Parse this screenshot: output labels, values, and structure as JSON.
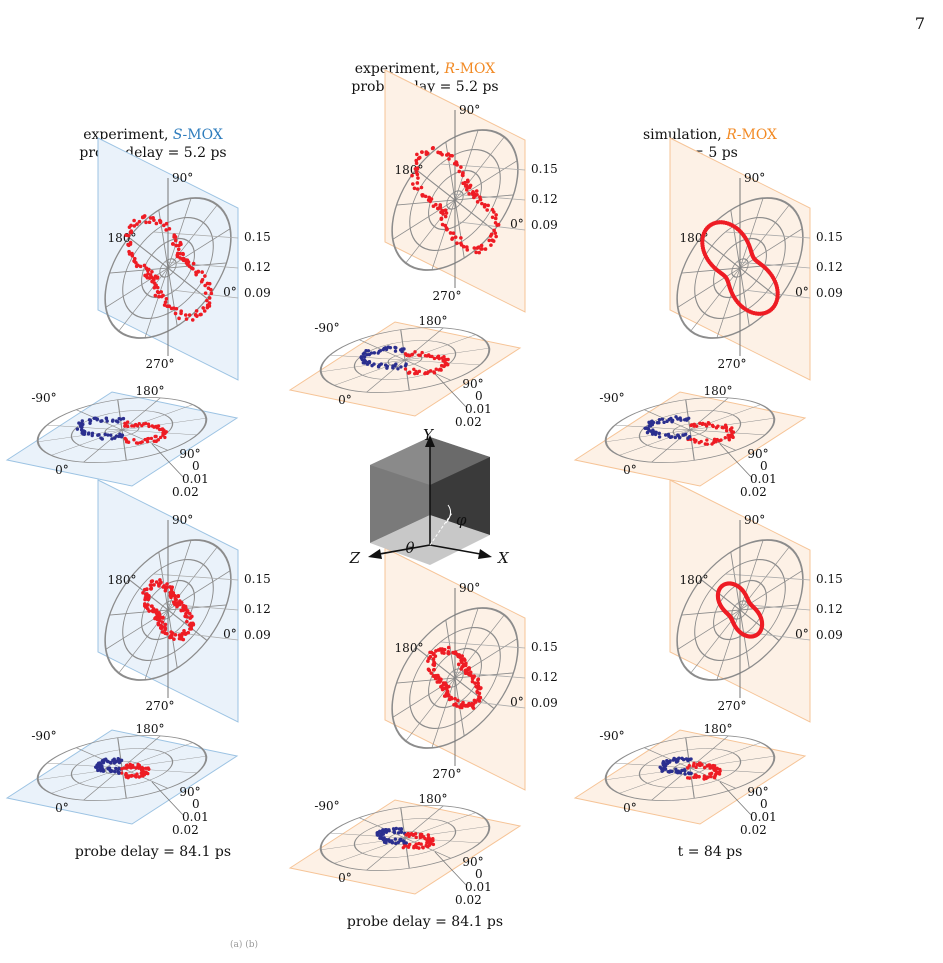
{
  "page_number": "7",
  "colors": {
    "s_mox": "#2f7dbd",
    "r_mox": "#f28a24",
    "s_plane": "#eaf2fa",
    "r_plane": "#fdf1e6",
    "grid": "#8c8c8c",
    "data_red": "#ee1c24",
    "data_blue": "#2b2f8f"
  },
  "columns": [
    {
      "prefix": "experiment, ",
      "name": "S",
      "name_suffix": "-MOX",
      "line2": "probe delay = 5.2 ps",
      "bottom": "probe delay = 84.1 ps"
    },
    {
      "prefix": "experiment, ",
      "name": "R",
      "name_suffix": "-MOX",
      "line2": "probe delay = 5.2 ps",
      "bottom": "probe delay = 84.1 ps"
    },
    {
      "prefix": "simulation, ",
      "name": "R",
      "name_suffix": "-MOX",
      "line2": "t = 5 ps",
      "bottom": "t = 84 ps"
    }
  ],
  "vertical_ticks": {
    "top": "90°",
    "left": "180°",
    "right": "0°",
    "bottom": "270°",
    "radii": [
      "0.15",
      "0.12",
      "0.09"
    ]
  },
  "horizontal_ticks": {
    "left": "-90°",
    "top": "180°",
    "right": "90°",
    "bottom": "0°",
    "radii": [
      "0",
      "0.01",
      "0.02"
    ]
  },
  "axes": {
    "x": "X",
    "y": "Y",
    "z": "Z",
    "theta": "θ",
    "phi": "φ"
  },
  "bottom_text": "(a) (b)"
}
